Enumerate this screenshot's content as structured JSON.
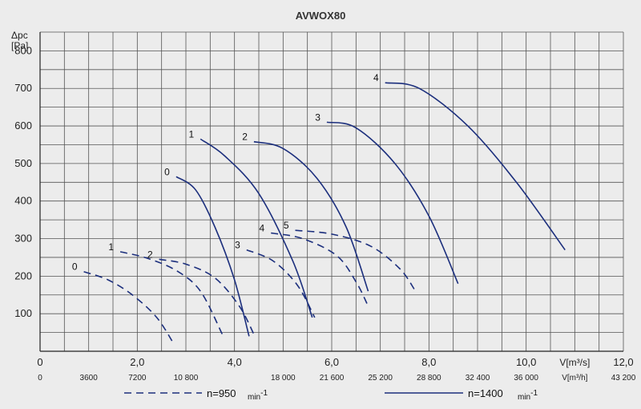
{
  "chart_data": {
    "type": "line",
    "title": "AVWOX80",
    "ylabel_line1": "Δpc",
    "ylabel_line2": "[Pa]",
    "xlabel": "V[m³/s]",
    "xlabel2": "V[m³/h]",
    "xlim": [
      0,
      12
    ],
    "ylim": [
      0,
      850
    ],
    "x_ticks": [
      0,
      2,
      4,
      6,
      8,
      10,
      12
    ],
    "x_tick_labels": [
      "0",
      "2,0",
      "4,0",
      "6,0",
      "8,0",
      "10,0",
      "12,0"
    ],
    "y_ticks": [
      100,
      200,
      300,
      400,
      500,
      600,
      700,
      800
    ],
    "y_tick_labels": [
      "100",
      "200",
      "300",
      "400",
      "500",
      "600",
      "700",
      "800"
    ],
    "x2_ticks": [
      0,
      1,
      2,
      3,
      5,
      6,
      7,
      8,
      9,
      10,
      12
    ],
    "x2_tick_labels": [
      "0",
      "3600",
      "7200",
      "10 800",
      "18 000",
      "21 600",
      "25 200",
      "28 800",
      "32 400",
      "36 000",
      "43 200"
    ],
    "grid": true,
    "legend": [
      {
        "style": "dashed",
        "label": "n=950",
        "unit": "min",
        "exp": "-1"
      },
      {
        "style": "solid",
        "label": "n=1400",
        "unit": "min",
        "exp": "-1"
      }
    ],
    "series": [
      {
        "label": "0",
        "style": "dashed",
        "points": [
          [
            0.9,
            212
          ],
          [
            1.4,
            190
          ],
          [
            1.9,
            150
          ],
          [
            2.4,
            90
          ],
          [
            2.75,
            20
          ]
        ]
      },
      {
        "label": "1",
        "style": "dashed",
        "points": [
          [
            1.65,
            265
          ],
          [
            2.2,
            248
          ],
          [
            2.8,
            215
          ],
          [
            3.3,
            160
          ],
          [
            3.75,
            45
          ]
        ]
      },
      {
        "label": "2",
        "style": "dashed",
        "points": [
          [
            2.45,
            245
          ],
          [
            3.0,
            232
          ],
          [
            3.6,
            195
          ],
          [
            4.1,
            120
          ],
          [
            4.4,
            45
          ]
        ]
      },
      {
        "label": "3",
        "style": "dashed",
        "points": [
          [
            4.25,
            270
          ],
          [
            4.8,
            240
          ],
          [
            5.3,
            175
          ],
          [
            5.65,
            90
          ]
        ]
      },
      {
        "label": "4",
        "style": "dashed",
        "points": [
          [
            4.75,
            315
          ],
          [
            5.4,
            300
          ],
          [
            6.1,
            255
          ],
          [
            6.5,
            185
          ],
          [
            6.75,
            120
          ]
        ]
      },
      {
        "label": "5",
        "style": "dashed",
        "points": [
          [
            5.25,
            322
          ],
          [
            6.0,
            312
          ],
          [
            6.8,
            280
          ],
          [
            7.4,
            220
          ],
          [
            7.7,
            165
          ]
        ]
      },
      {
        "label": "0",
        "style": "solid",
        "points": [
          [
            2.8,
            465
          ],
          [
            3.2,
            430
          ],
          [
            3.6,
            330
          ],
          [
            4.0,
            190
          ],
          [
            4.3,
            40
          ]
        ]
      },
      {
        "label": "1",
        "style": "solid",
        "points": [
          [
            3.3,
            565
          ],
          [
            3.8,
            520
          ],
          [
            4.5,
            420
          ],
          [
            5.2,
            240
          ],
          [
            5.6,
            90
          ]
        ]
      },
      {
        "label": "2",
        "style": "solid",
        "points": [
          [
            4.4,
            558
          ],
          [
            5.0,
            540
          ],
          [
            5.7,
            460
          ],
          [
            6.3,
            330
          ],
          [
            6.75,
            160
          ]
        ]
      },
      {
        "label": "3",
        "style": "solid",
        "points": [
          [
            5.9,
            610
          ],
          [
            6.5,
            595
          ],
          [
            7.3,
            500
          ],
          [
            8.0,
            360
          ],
          [
            8.6,
            180
          ]
        ]
      },
      {
        "label": "4",
        "style": "solid",
        "points": [
          [
            7.1,
            715
          ],
          [
            7.8,
            700
          ],
          [
            8.8,
            600
          ],
          [
            9.8,
            450
          ],
          [
            10.8,
            270
          ]
        ]
      }
    ]
  }
}
